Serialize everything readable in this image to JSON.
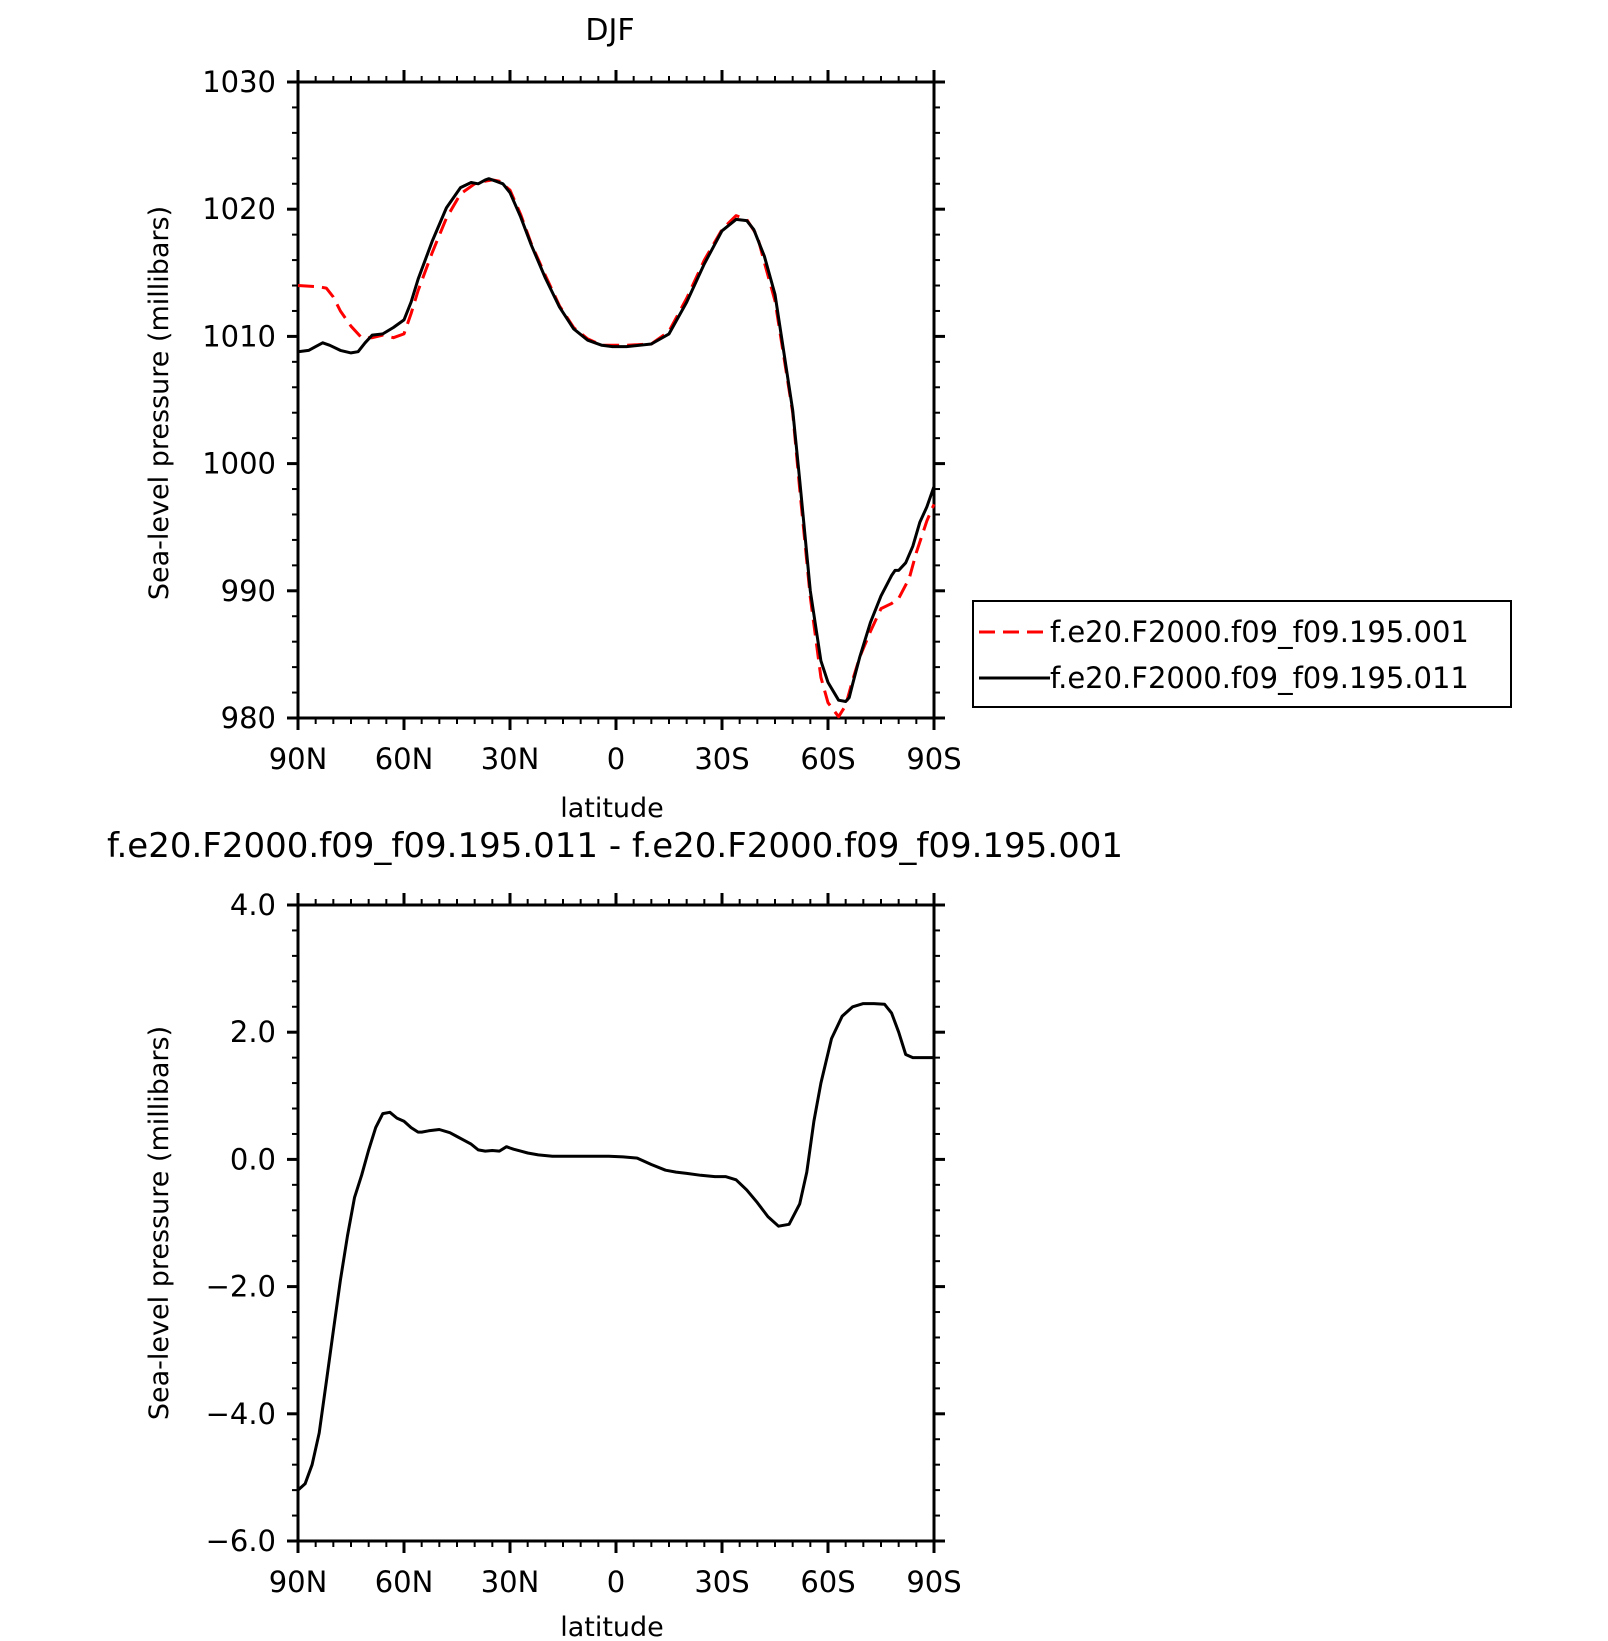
{
  "chart_data": [
    {
      "type": "line",
      "title": "DJF",
      "xlabel": "latitude",
      "ylabel": "Sea-level pressure (millibars)",
      "xlim": [
        -90,
        90
      ],
      "ylim": [
        980,
        1030
      ],
      "x_ticks": [
        {
          "value": -90,
          "label": "90N"
        },
        {
          "value": -60,
          "label": "60N"
        },
        {
          "value": -30,
          "label": "30N"
        },
        {
          "value": 0,
          "label": "0"
        },
        {
          "value": 30,
          "label": "30S"
        },
        {
          "value": 60,
          "label": "60S"
        },
        {
          "value": 90,
          "label": "90S"
        }
      ],
      "y_ticks": [
        {
          "value": 980,
          "label": "980"
        },
        {
          "value": 990,
          "label": "990"
        },
        {
          "value": 1000,
          "label": "1000"
        },
        {
          "value": 1010,
          "label": "1010"
        },
        {
          "value": 1020,
          "label": "1020"
        },
        {
          "value": 1030,
          "label": "1030"
        }
      ],
      "legend": "right",
      "series": [
        {
          "name": "f.e20.F2000.f09_f09.195.001",
          "color": "#ff0000",
          "dash": "dashed",
          "x": [
            -90,
            -84,
            -82,
            -80,
            -78,
            -75,
            -72,
            -69,
            -66,
            -63,
            -60,
            -58,
            -56,
            -52,
            -48,
            -44,
            -40,
            -37,
            -35,
            -33,
            -30,
            -27,
            -24,
            -20,
            -16,
            -12,
            -8,
            -4,
            -1,
            3,
            10,
            15,
            20,
            25,
            30,
            34,
            37,
            40,
            42,
            45,
            50,
            52,
            55,
            58,
            60,
            63,
            65,
            67,
            69,
            72,
            75,
            78,
            80,
            83,
            85,
            88,
            90
          ],
          "y": [
            1014,
            1013.9,
            1013.8,
            1013.1,
            1012,
            1010.8,
            1009.9,
            1009.9,
            1010.1,
            1009.9,
            1010.2,
            1011.8,
            1013.6,
            1016.6,
            1019.3,
            1021.2,
            1022,
            1022.2,
            1022.3,
            1022.2,
            1021.5,
            1019.6,
            1017.3,
            1014.8,
            1012.4,
            1010.7,
            1009.8,
            1009.3,
            1009.3,
            1009.3,
            1009.4,
            1010.4,
            1013,
            1016,
            1018.4,
            1019.5,
            1019.2,
            1017.9,
            1015.8,
            1012.8,
            1004,
            998,
            989.5,
            983.2,
            981.2,
            980.1,
            981,
            983,
            984.8,
            986.8,
            988.6,
            989,
            989.4,
            991,
            993,
            995.5,
            996.8
          ]
        },
        {
          "name": "f.e20.F2000.f09_f09.195.011",
          "color": "#000000",
          "dash": "solid",
          "x": [
            -90,
            -87,
            -85,
            -83,
            -81,
            -78,
            -75,
            -73,
            -71,
            -69,
            -66,
            -63,
            -60,
            -58,
            -56,
            -52,
            -48,
            -44,
            -41,
            -39,
            -37,
            -36,
            -34,
            -32,
            -30,
            -27,
            -24,
            -20,
            -16,
            -12,
            -8,
            -4,
            -1,
            3,
            10,
            15,
            20,
            25,
            30,
            34,
            37,
            39,
            42,
            45,
            50,
            52,
            55,
            58,
            60,
            63,
            65,
            66,
            67,
            69,
            72,
            75,
            78,
            79,
            80,
            82,
            84,
            86,
            88,
            90
          ],
          "y": [
            1008.8,
            1008.9,
            1009.2,
            1009.5,
            1009.3,
            1008.9,
            1008.7,
            1008.8,
            1009.5,
            1010.1,
            1010.2,
            1010.7,
            1011.3,
            1012.7,
            1014.5,
            1017.5,
            1020.1,
            1021.7,
            1022.1,
            1022,
            1022.3,
            1022.4,
            1022.2,
            1022,
            1021.3,
            1019.4,
            1017.2,
            1014.6,
            1012.3,
            1010.6,
            1009.7,
            1009.3,
            1009.2,
            1009.2,
            1009.4,
            1010.2,
            1012.7,
            1015.7,
            1018.3,
            1019.2,
            1019.1,
            1018.4,
            1016.3,
            1013.3,
            1004.2,
            998.7,
            990,
            984.5,
            982.8,
            981.4,
            981.3,
            981.6,
            982.7,
            984.8,
            987.5,
            989.6,
            991.2,
            991.6,
            991.6,
            992.2,
            993.5,
            995.4,
            996.6,
            998.2
          ]
        }
      ]
    },
    {
      "type": "line",
      "title": "f.e20.F2000.f09_f09.195.011 - f.e20.F2000.f09_f09.195.001",
      "xlabel": "latitude",
      "ylabel": "Sea-level pressure (millibars)",
      "xlim": [
        -90,
        90
      ],
      "ylim": [
        -6,
        4
      ],
      "x_ticks": [
        {
          "value": -90,
          "label": "90N"
        },
        {
          "value": -60,
          "label": "60N"
        },
        {
          "value": -30,
          "label": "30N"
        },
        {
          "value": 0,
          "label": "0"
        },
        {
          "value": 30,
          "label": "30S"
        },
        {
          "value": 60,
          "label": "60S"
        },
        {
          "value": 90,
          "label": "90S"
        }
      ],
      "y_ticks": [
        {
          "value": -6,
          "label": "−6.0"
        },
        {
          "value": -4,
          "label": "−4.0"
        },
        {
          "value": -2,
          "label": "−2.0"
        },
        {
          "value": 0,
          "label": "0.0"
        },
        {
          "value": 2,
          "label": "2.0"
        },
        {
          "value": 4,
          "label": "4.0"
        }
      ],
      "series": [
        {
          "color": "#000000",
          "dash": "solid",
          "x": [
            -90,
            -88,
            -86,
            -84,
            -82,
            -80,
            -78,
            -76,
            -74,
            -72,
            -70,
            -68,
            -66,
            -64,
            -62,
            -60,
            -58,
            -56,
            -55,
            -53,
            -50,
            -47,
            -45,
            -43,
            -41,
            -39,
            -37,
            -35,
            -33,
            -31,
            -30,
            -29,
            -27,
            -25,
            -22,
            -18,
            -14,
            -10,
            -6,
            -2,
            2,
            6,
            10,
            14,
            17,
            20,
            24,
            28,
            31,
            34,
            37,
            40,
            43,
            46,
            49,
            52,
            54,
            56,
            58,
            61,
            64,
            67,
            70,
            73,
            76,
            78,
            80,
            82,
            84,
            86,
            88,
            90
          ],
          "y": [
            -5.2,
            -5.1,
            -4.8,
            -4.3,
            -3.5,
            -2.7,
            -1.9,
            -1.2,
            -0.6,
            -0.25,
            0.15,
            0.5,
            0.72,
            0.74,
            0.65,
            0.6,
            0.5,
            0.43,
            0.43,
            0.45,
            0.47,
            0.42,
            0.36,
            0.3,
            0.24,
            0.15,
            0.13,
            0.14,
            0.13,
            0.2,
            0.18,
            0.16,
            0.13,
            0.1,
            0.07,
            0.05,
            0.05,
            0.05,
            0.05,
            0.05,
            0.04,
            0.02,
            -0.08,
            -0.17,
            -0.2,
            -0.22,
            -0.25,
            -0.27,
            -0.27,
            -0.32,
            -0.48,
            -0.68,
            -0.9,
            -1.05,
            -1.02,
            -0.7,
            -0.2,
            0.6,
            1.2,
            1.9,
            2.25,
            2.4,
            2.45,
            2.45,
            2.44,
            2.3,
            2.0,
            1.65,
            1.6,
            1.6,
            1.6,
            1.6
          ]
        }
      ]
    }
  ]
}
